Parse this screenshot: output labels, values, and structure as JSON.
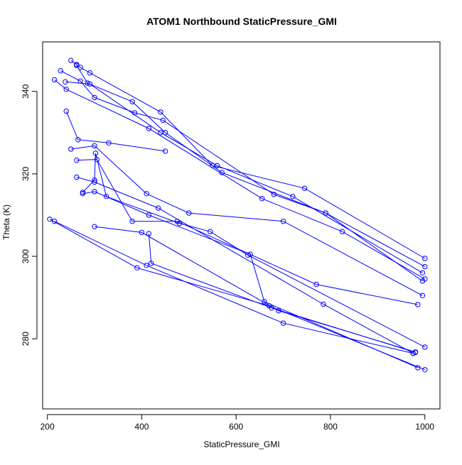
{
  "chart_data": {
    "type": "scatter",
    "title": "ATOM1 Northbound StaticPressure_GMI",
    "xlabel": "StaticPressure_GMI",
    "ylabel": "Theta (K)",
    "xlim": [
      190,
      1032
    ],
    "ylim": [
      263,
      352
    ],
    "x_ticks": [
      200,
      400,
      600,
      800,
      1000
    ],
    "y_ticks": [
      280,
      300,
      320,
      340
    ],
    "grid": false,
    "legend": "none",
    "series_color": "#0000ff",
    "line_type": "points-and-lines",
    "traces": [
      [
        [
          250,
          347.5
        ],
        [
          262,
          346.5
        ],
        [
          270,
          345.8
        ],
        [
          290,
          344.5
        ],
        [
          440,
          335
        ],
        [
          550,
          322
        ],
        [
          745,
          316.5
        ],
        [
          1000,
          299.5
        ]
      ],
      [
        [
          262,
          346.3
        ],
        [
          285,
          342.0
        ],
        [
          380,
          337.5
        ],
        [
          450,
          330
        ],
        [
          570,
          320.3
        ],
        [
          790,
          310.5
        ],
        [
          1000,
          297.5
        ]
      ],
      [
        [
          228,
          345
        ],
        [
          270,
          342.5
        ],
        [
          300,
          338.5
        ],
        [
          385,
          334.8
        ],
        [
          445,
          333
        ],
        [
          680,
          315
        ],
        [
          790,
          310.5
        ],
        [
          995,
          294
        ]
      ],
      [
        [
          215,
          342.8
        ],
        [
          240,
          340.5
        ],
        [
          415,
          331
        ],
        [
          655,
          314
        ],
        [
          825,
          306
        ],
        [
          1000,
          294.5
        ]
      ],
      [
        [
          238,
          342.3
        ],
        [
          290,
          341.8
        ],
        [
          440,
          330
        ],
        [
          560,
          322
        ],
        [
          720,
          314.5
        ],
        [
          995,
          296
        ]
      ],
      [
        [
          240,
          335.2
        ],
        [
          265,
          328.3
        ],
        [
          330,
          327.5
        ],
        [
          450,
          325.5
        ]
      ],
      [
        [
          250,
          326
        ],
        [
          300,
          326.8
        ],
        [
          410,
          315.2
        ],
        [
          500,
          310.5
        ],
        [
          700,
          308.5
        ],
        [
          995,
          290.5
        ]
      ],
      [
        [
          262,
          323.3
        ],
        [
          305,
          323.5
        ],
        [
          380,
          308.5
        ],
        [
          475,
          308.5
        ],
        [
          770,
          293.2
        ],
        [
          985,
          288.3
        ]
      ],
      [
        [
          262,
          319.2
        ],
        [
          300,
          318
        ],
        [
          435,
          311.7
        ],
        [
          785,
          288.4
        ],
        [
          975,
          276.5
        ]
      ],
      [
        [
          275,
          315.5
        ],
        [
          300,
          318.5
        ],
        [
          302,
          325
        ],
        [
          325,
          314.5
        ],
        [
          480,
          308
        ],
        [
          545,
          306
        ],
        [
          625,
          300.3
        ],
        [
          1000,
          278
        ]
      ],
      [
        [
          275,
          315.2
        ],
        [
          300,
          315.7
        ],
        [
          415,
          310
        ],
        [
          630,
          300.5
        ],
        [
          660,
          289
        ],
        [
          985,
          273
        ]
      ],
      [
        [
          205,
          309
        ],
        [
          390,
          297.2
        ],
        [
          670,
          288
        ],
        [
          1000,
          272.5
        ]
      ],
      [
        [
          300,
          307.2
        ],
        [
          400,
          305.8
        ],
        [
          690,
          286.8
        ],
        [
          980,
          276.8
        ]
      ],
      [
        [
          215,
          308.5
        ],
        [
          410,
          297.8
        ],
        [
          700,
          283.8
        ],
        [
          975,
          276.5
        ]
      ],
      [
        [
          415,
          305.5
        ],
        [
          420,
          298.3
        ],
        [
          675,
          287.5
        ],
        [
          980,
          276.7
        ]
      ]
    ]
  }
}
